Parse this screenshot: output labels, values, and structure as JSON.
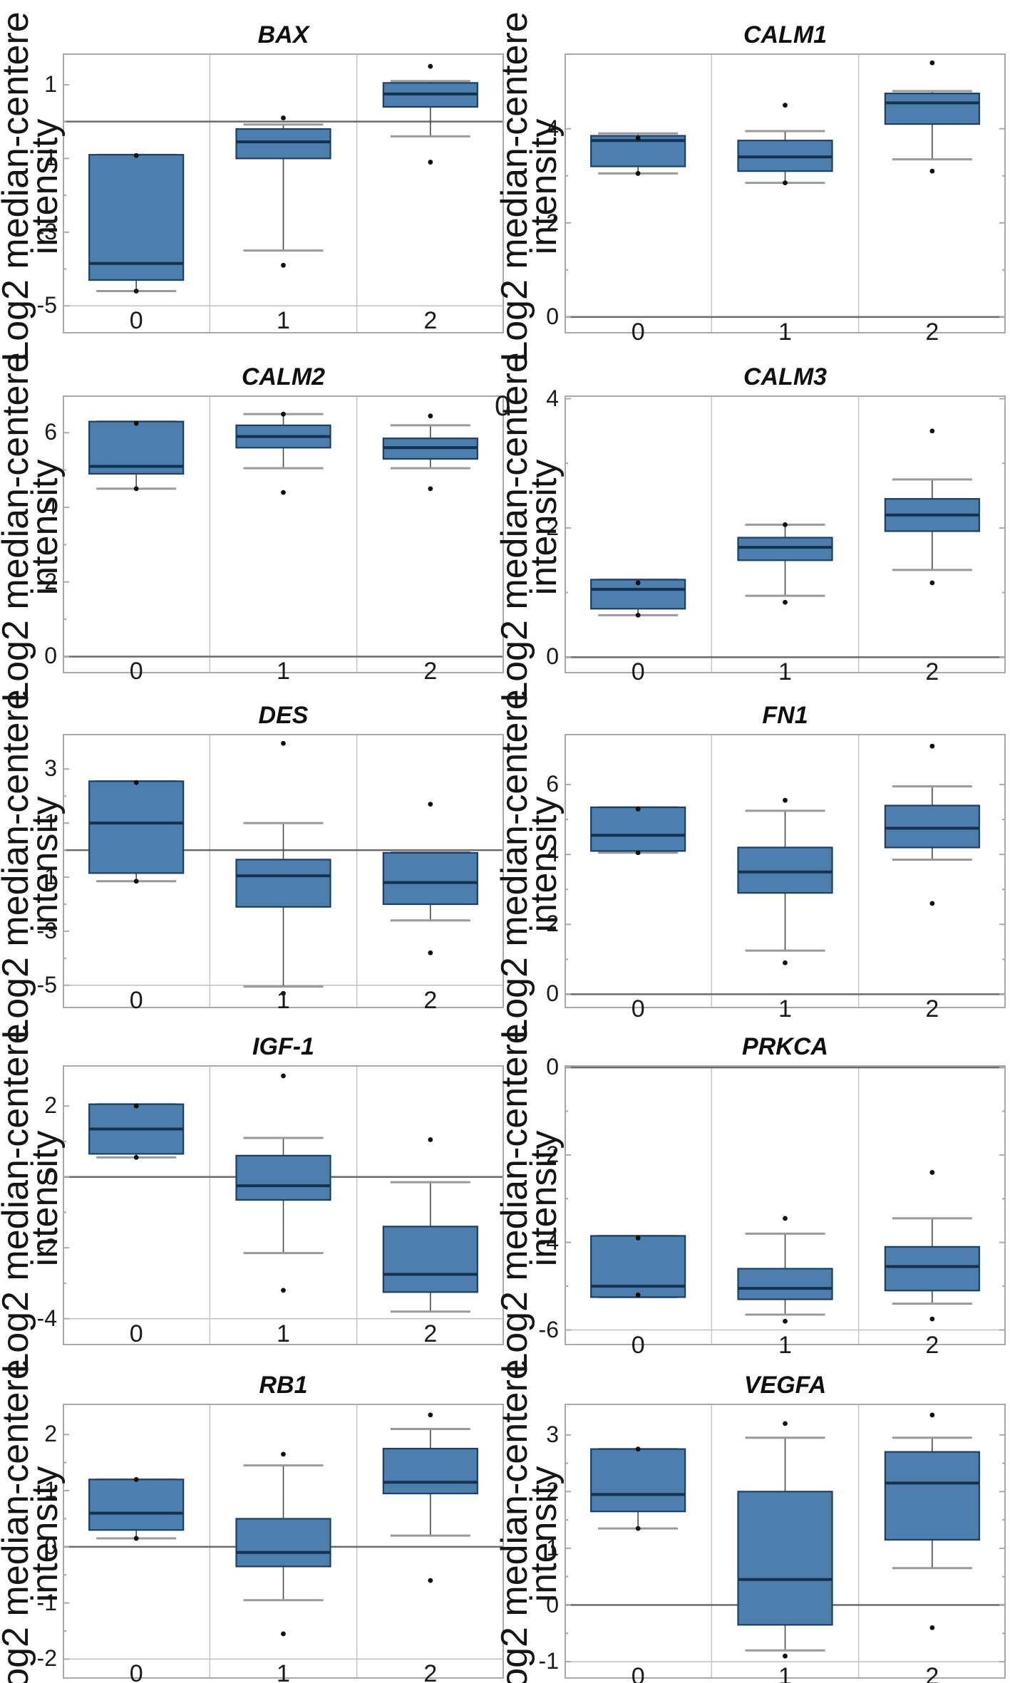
{
  "shared": {
    "ylabel_line1": "Log2 median-centere",
    "ylabel_line2": "intensity",
    "stray_label": "0",
    "colors": {
      "box_fill": "#4c7fad",
      "box_border": "#1c3f63",
      "median": "#14324e",
      "whisker_stem": "#4a4a4a",
      "whisker_cap": "#9a9a9a",
      "zero_line": "#6a6a6a",
      "frame": "#a9a9a9",
      "gridline": "#c6c6c6",
      "axis_floor": "#bfbfbf",
      "point": "#101010",
      "text": "#1a1a1a"
    }
  },
  "chart_data": [
    {
      "type": "box",
      "title": "BAX",
      "ylabel": "Log2 median-centere intensity",
      "categories": [
        "0",
        "1",
        "2"
      ],
      "ylim": [
        -5.75,
        1.85
      ],
      "yticks": [
        1,
        -1,
        -3,
        -5
      ],
      "zero_line": 0,
      "grid": "vertical-only",
      "legend": "none",
      "series": [
        {
          "category": "0",
          "q1": -4.3,
          "median": -3.85,
          "q3": -0.9,
          "whisker_low": -4.6,
          "whisker_high": -0.9,
          "points": [
            -0.92,
            -4.6
          ]
        },
        {
          "category": "1",
          "q1": -1.0,
          "median": -0.55,
          "q3": -0.2,
          "whisker_low": -3.5,
          "whisker_high": -0.08,
          "points": [
            0.1,
            -3.9
          ]
        },
        {
          "category": "2",
          "q1": 0.4,
          "median": 0.75,
          "q3": 1.05,
          "whisker_low": -0.4,
          "whisker_high": 1.1,
          "points": [
            1.5,
            -1.1
          ]
        }
      ]
    },
    {
      "type": "box",
      "title": "CALM1",
      "ylabel": "Log2 median-centere intensity",
      "categories": [
        "0",
        "1",
        "2"
      ],
      "ylim": [
        -0.35,
        5.6
      ],
      "yticks": [
        4,
        2,
        0
      ],
      "zero_line": 0,
      "grid": "vertical-only",
      "legend": "none",
      "series": [
        {
          "category": "0",
          "q1": 3.2,
          "median": 3.75,
          "q3": 3.85,
          "whisker_low": 3.05,
          "whisker_high": 3.9,
          "points": [
            3.8,
            3.05
          ]
        },
        {
          "category": "1",
          "q1": 3.1,
          "median": 3.4,
          "q3": 3.75,
          "whisker_low": 2.85,
          "whisker_high": 3.95,
          "points": [
            4.5,
            2.85
          ]
        },
        {
          "category": "2",
          "q1": 4.1,
          "median": 4.55,
          "q3": 4.75,
          "whisker_low": 3.35,
          "whisker_high": 4.8,
          "points": [
            5.4,
            3.1
          ]
        }
      ]
    },
    {
      "type": "box",
      "title": "CALM2",
      "ylabel": "Log2 median-centere intensity",
      "categories": [
        "0",
        "1",
        "2"
      ],
      "ylim": [
        -0.45,
        7.0
      ],
      "yticks": [
        6,
        4,
        2,
        0
      ],
      "zero_line": 0,
      "grid": "vertical-only",
      "legend": "none",
      "series": [
        {
          "category": "0",
          "q1": 4.9,
          "median": 5.1,
          "q3": 6.3,
          "whisker_low": 4.5,
          "whisker_high": 6.3,
          "points": [
            6.25,
            4.5
          ]
        },
        {
          "category": "1",
          "q1": 5.6,
          "median": 5.9,
          "q3": 6.2,
          "whisker_low": 5.05,
          "whisker_high": 6.5,
          "points": [
            6.5,
            4.4
          ]
        },
        {
          "category": "2",
          "q1": 5.3,
          "median": 5.6,
          "q3": 5.85,
          "whisker_low": 5.05,
          "whisker_high": 6.2,
          "points": [
            6.45,
            4.5
          ]
        }
      ]
    },
    {
      "type": "box",
      "title": "CALM3",
      "ylabel": "Log2 median-centere intensity",
      "categories": [
        "0",
        "1",
        "2"
      ],
      "ylim": [
        -0.25,
        4.05
      ],
      "yticks": [
        4,
        2,
        0
      ],
      "zero_line": 0,
      "grid": "vertical-only",
      "legend": "none",
      "series": [
        {
          "category": "0",
          "q1": 0.75,
          "median": 1.05,
          "q3": 1.2,
          "whisker_low": 0.65,
          "whisker_high": 1.2,
          "points": [
            1.15,
            0.65
          ]
        },
        {
          "category": "1",
          "q1": 1.5,
          "median": 1.7,
          "q3": 1.85,
          "whisker_low": 0.95,
          "whisker_high": 2.05,
          "points": [
            2.05,
            0.85
          ]
        },
        {
          "category": "2",
          "q1": 1.95,
          "median": 2.2,
          "q3": 2.45,
          "whisker_low": 1.35,
          "whisker_high": 2.75,
          "points": [
            3.5,
            1.15
          ]
        }
      ]
    },
    {
      "type": "box",
      "title": "DES",
      "ylabel": "Log2 median-centere intensity",
      "categories": [
        "0",
        "1",
        "2"
      ],
      "ylim": [
        -5.85,
        4.3
      ],
      "yticks": [
        3,
        1,
        -1,
        -3,
        -5
      ],
      "zero_line": 0,
      "grid": "vertical-only",
      "legend": "none",
      "series": [
        {
          "category": "0",
          "q1": -0.85,
          "median": 1.0,
          "q3": 2.55,
          "whisker_low": -1.15,
          "whisker_high": 2.55,
          "points": [
            2.5,
            -1.15
          ]
        },
        {
          "category": "1",
          "q1": -2.1,
          "median": -0.95,
          "q3": -0.35,
          "whisker_low": -5.05,
          "whisker_high": 1.0,
          "points": [
            3.95,
            -5.3
          ]
        },
        {
          "category": "2",
          "q1": -2.0,
          "median": -1.2,
          "q3": -0.1,
          "whisker_low": -2.6,
          "whisker_high": -0.05,
          "points": [
            1.7,
            -3.8
          ]
        }
      ]
    },
    {
      "type": "box",
      "title": "FN1",
      "ylabel": "Log2 median-centere intensity",
      "categories": [
        "0",
        "1",
        "2"
      ],
      "ylim": [
        -0.4,
        7.45
      ],
      "yticks": [
        6,
        4,
        2,
        0
      ],
      "zero_line": 0,
      "grid": "vertical-only",
      "legend": "none",
      "series": [
        {
          "category": "0",
          "q1": 4.1,
          "median": 4.55,
          "q3": 5.35,
          "whisker_low": 4.05,
          "whisker_high": 5.35,
          "points": [
            5.3,
            4.05
          ]
        },
        {
          "category": "1",
          "q1": 2.9,
          "median": 3.5,
          "q3": 4.2,
          "whisker_low": 1.25,
          "whisker_high": 5.25,
          "points": [
            5.55,
            0.9
          ]
        },
        {
          "category": "2",
          "q1": 4.2,
          "median": 4.75,
          "q3": 5.4,
          "whisker_low": 3.85,
          "whisker_high": 5.95,
          "points": [
            7.1,
            2.6
          ]
        }
      ]
    },
    {
      "type": "box",
      "title": "IGF-1",
      "ylabel": "Log2 median-centere intensity",
      "categories": [
        "0",
        "1",
        "2"
      ],
      "ylim": [
        -4.75,
        3.15
      ],
      "yticks": [
        2,
        0,
        -2,
        -4
      ],
      "zero_line": 0,
      "grid": "vertical-only",
      "legend": "none",
      "series": [
        {
          "category": "0",
          "q1": 0.65,
          "median": 1.35,
          "q3": 2.05,
          "whisker_low": 0.55,
          "whisker_high": 2.05,
          "points": [
            2.0,
            0.55
          ]
        },
        {
          "category": "1",
          "q1": -0.65,
          "median": -0.25,
          "q3": 0.6,
          "whisker_low": -2.15,
          "whisker_high": 1.1,
          "points": [
            2.85,
            -3.2
          ]
        },
        {
          "category": "2",
          "q1": -3.25,
          "median": -2.75,
          "q3": -1.4,
          "whisker_low": -3.8,
          "whisker_high": -0.15,
          "points": [
            1.05
          ]
        }
      ]
    },
    {
      "type": "box",
      "title": "PRKCA",
      "ylabel": "Log2 median-centere intensity",
      "categories": [
        "0",
        "1",
        "2"
      ],
      "ylim": [
        -6.35,
        0.05
      ],
      "yticks": [
        0,
        -2,
        -4,
        -6
      ],
      "zero_line": 0,
      "grid": "vertical-only",
      "legend": "none",
      "series": [
        {
          "category": "0",
          "q1": -5.25,
          "median": -5.0,
          "q3": -3.85,
          "whisker_low": -5.25,
          "whisker_high": -3.85,
          "points": [
            -3.9,
            -5.2
          ]
        },
        {
          "category": "1",
          "q1": -5.3,
          "median": -5.05,
          "q3": -4.6,
          "whisker_low": -5.65,
          "whisker_high": -3.8,
          "points": [
            -3.45,
            -5.8
          ]
        },
        {
          "category": "2",
          "q1": -5.1,
          "median": -4.55,
          "q3": -4.1,
          "whisker_low": -5.4,
          "whisker_high": -3.45,
          "points": [
            -2.4,
            -5.75
          ]
        }
      ]
    },
    {
      "type": "box",
      "title": "RB1",
      "ylabel": "Log2 median-centere intensity",
      "categories": [
        "0",
        "1",
        "2"
      ],
      "ylim": [
        -2.35,
        2.55
      ],
      "yticks": [
        2,
        1,
        0,
        -1,
        -2
      ],
      "zero_line": 0,
      "grid": "vertical-only",
      "legend": "none",
      "series": [
        {
          "category": "0",
          "q1": 0.3,
          "median": 0.6,
          "q3": 1.2,
          "whisker_low": 0.15,
          "whisker_high": 1.2,
          "points": [
            1.2,
            0.15
          ]
        },
        {
          "category": "1",
          "q1": -0.35,
          "median": -0.1,
          "q3": 0.5,
          "whisker_low": -0.95,
          "whisker_high": 1.45,
          "points": [
            1.65,
            -1.55
          ]
        },
        {
          "category": "2",
          "q1": 0.95,
          "median": 1.15,
          "q3": 1.75,
          "whisker_low": 0.2,
          "whisker_high": 2.1,
          "points": [
            2.35,
            -0.6
          ]
        }
      ]
    },
    {
      "type": "box",
      "title": "VEGFA",
      "ylabel": "Log2 median-centere intensity",
      "categories": [
        "0",
        "1",
        "2"
      ],
      "ylim": [
        -1.3,
        3.55
      ],
      "yticks": [
        3,
        2,
        1,
        0,
        -1
      ],
      "zero_line": 0,
      "grid": "vertical-only",
      "legend": "none",
      "series": [
        {
          "category": "0",
          "q1": 1.65,
          "median": 1.95,
          "q3": 2.75,
          "whisker_low": 1.35,
          "whisker_high": 2.75,
          "points": [
            2.75,
            1.35
          ]
        },
        {
          "category": "1",
          "q1": -0.35,
          "median": 0.45,
          "q3": 2.0,
          "whisker_low": -0.8,
          "whisker_high": 2.95,
          "points": [
            3.2,
            -0.9
          ]
        },
        {
          "category": "2",
          "q1": 1.15,
          "median": 2.15,
          "q3": 2.7,
          "whisker_low": 0.65,
          "whisker_high": 2.95,
          "points": [
            3.35,
            -0.4
          ]
        }
      ]
    }
  ]
}
